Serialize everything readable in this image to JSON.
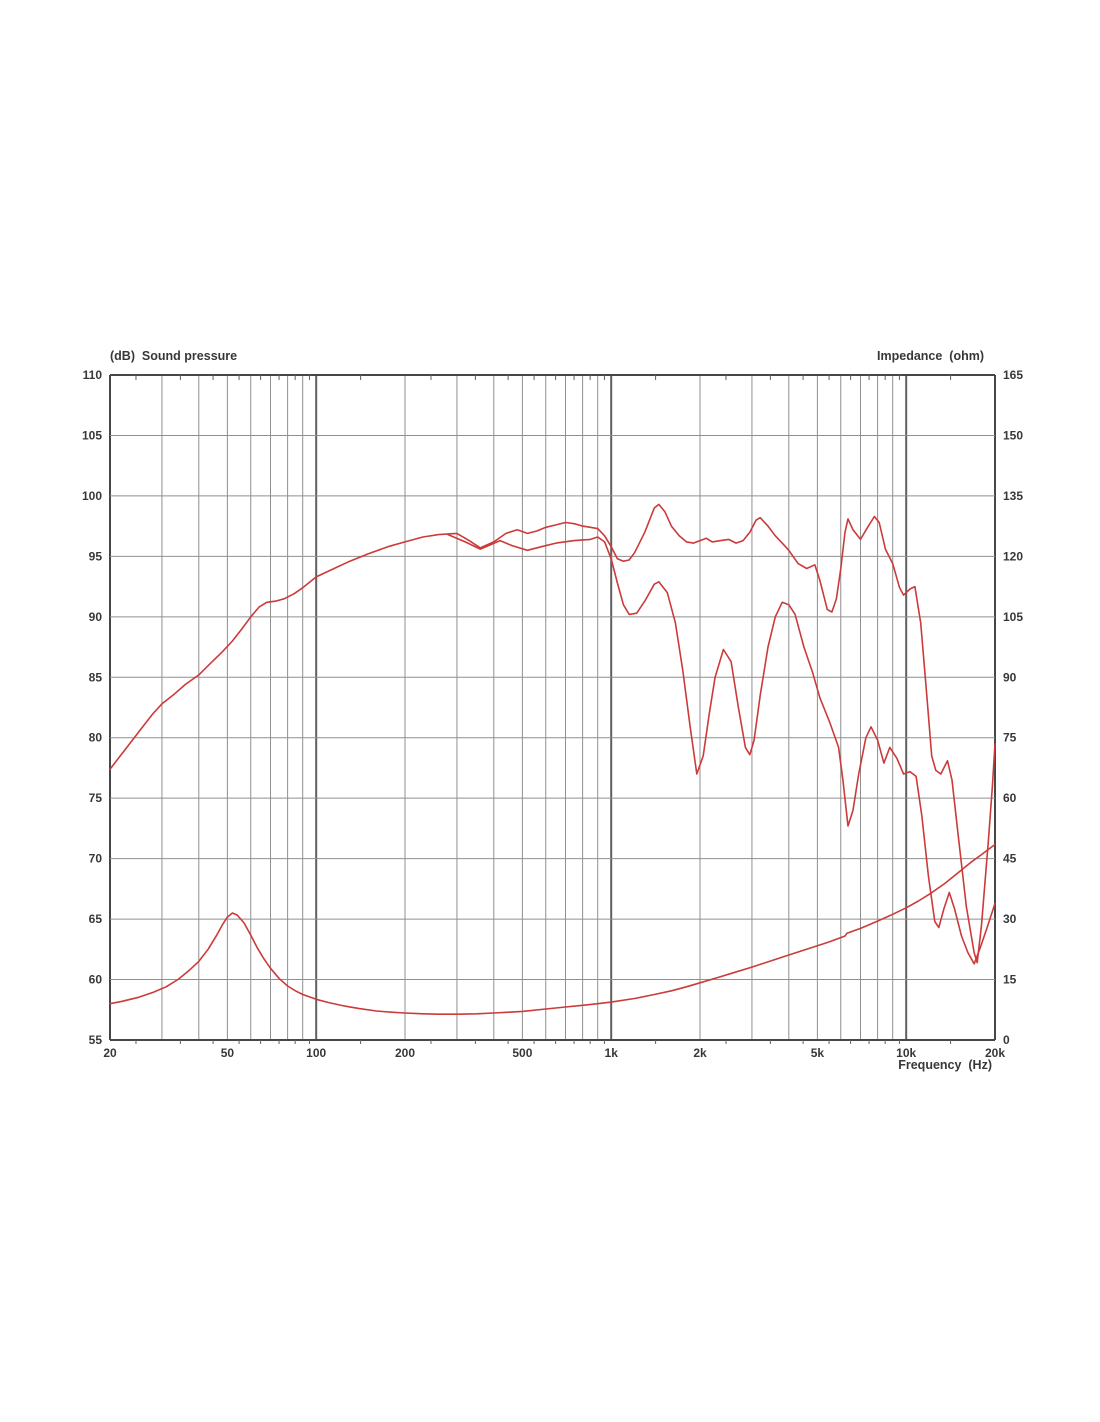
{
  "page": {
    "background": "#ffffff"
  },
  "chart_data": {
    "type": "line",
    "title_left": "(dB)  Sound pressure",
    "title_right": "Impedance  (ohm)",
    "xlabel": "Frequency  (Hz)",
    "x_axis": {
      "scale": "log",
      "min": 20,
      "max": 20000,
      "tick_labels": [
        {
          "t": "20",
          "f": 20
        },
        {
          "t": "50",
          "f": 50
        },
        {
          "t": "100",
          "f": 100
        },
        {
          "t": "200",
          "f": 200
        },
        {
          "t": "500",
          "f": 500
        },
        {
          "t": "1k",
          "f": 1000
        },
        {
          "t": "2k",
          "f": 2000
        },
        {
          "t": "5k",
          "f": 5000
        },
        {
          "t": "10k",
          "f": 10000
        },
        {
          "t": "20k",
          "f": 20000
        }
      ]
    },
    "y_left": {
      "label": "dB",
      "min": 55,
      "max": 110,
      "step": 5
    },
    "y_right": {
      "label": "ohm",
      "min": 0,
      "max": 165,
      "step": 15
    },
    "grid": {
      "on": true,
      "minor_color": "#8f8f8f",
      "decade_color": "#5f5f5f",
      "border_color": "#474747",
      "tick_color": "#5f5f5f"
    },
    "legend": "none",
    "series": [
      {
        "name": "sound-pressure-upper",
        "axis": "left",
        "color": "#cc3a3a",
        "points": [
          [
            20,
            77.4
          ],
          [
            22,
            78.7
          ],
          [
            24,
            79.9
          ],
          [
            26,
            81.0
          ],
          [
            28,
            82.0
          ],
          [
            30,
            82.8
          ],
          [
            33,
            83.6
          ],
          [
            36,
            84.4
          ],
          [
            40,
            85.2
          ],
          [
            44,
            86.2
          ],
          [
            48,
            87.1
          ],
          [
            52,
            88.0
          ],
          [
            56,
            89.0
          ],
          [
            60,
            90.0
          ],
          [
            64,
            90.8
          ],
          [
            68,
            91.2
          ],
          [
            73,
            91.3
          ],
          [
            78,
            91.5
          ],
          [
            84,
            91.9
          ],
          [
            90,
            92.4
          ],
          [
            100,
            93.3
          ],
          [
            115,
            94.0
          ],
          [
            130,
            94.6
          ],
          [
            150,
            95.2
          ],
          [
            175,
            95.8
          ],
          [
            200,
            96.2
          ],
          [
            230,
            96.6
          ],
          [
            260,
            96.8
          ],
          [
            300,
            96.9
          ],
          [
            330,
            96.3
          ],
          [
            360,
            95.7
          ],
          [
            400,
            96.2
          ],
          [
            440,
            96.9
          ],
          [
            480,
            97.2
          ],
          [
            520,
            96.9
          ],
          [
            560,
            97.1
          ],
          [
            600,
            97.4
          ],
          [
            650,
            97.6
          ],
          [
            700,
            97.8
          ],
          [
            750,
            97.7
          ],
          [
            800,
            97.5
          ],
          [
            850,
            97.4
          ],
          [
            900,
            97.3
          ],
          [
            950,
            96.7
          ],
          [
            1000,
            95.8
          ],
          [
            1050,
            94.8
          ],
          [
            1100,
            94.6
          ],
          [
            1150,
            94.7
          ],
          [
            1200,
            95.3
          ],
          [
            1300,
            97.0
          ],
          [
            1400,
            99.0
          ],
          [
            1450,
            99.3
          ],
          [
            1520,
            98.7
          ],
          [
            1600,
            97.5
          ],
          [
            1700,
            96.7
          ],
          [
            1800,
            96.2
          ],
          [
            1900,
            96.1
          ],
          [
            2000,
            96.3
          ],
          [
            2100,
            96.5
          ],
          [
            2200,
            96.2
          ],
          [
            2350,
            96.3
          ],
          [
            2500,
            96.4
          ],
          [
            2650,
            96.1
          ],
          [
            2800,
            96.3
          ],
          [
            2950,
            97.0
          ],
          [
            3100,
            98.0
          ],
          [
            3200,
            98.2
          ],
          [
            3400,
            97.5
          ],
          [
            3600,
            96.7
          ],
          [
            3800,
            96.1
          ],
          [
            4000,
            95.5
          ],
          [
            4300,
            94.4
          ],
          [
            4600,
            94.0
          ],
          [
            4900,
            94.3
          ],
          [
            5100,
            93.0
          ],
          [
            5400,
            90.6
          ],
          [
            5600,
            90.4
          ],
          [
            5800,
            91.5
          ],
          [
            6000,
            94.0
          ],
          [
            6200,
            97.0
          ],
          [
            6350,
            98.1
          ],
          [
            6600,
            97.2
          ],
          [
            7000,
            96.4
          ],
          [
            7400,
            97.4
          ],
          [
            7800,
            98.3
          ],
          [
            8100,
            97.8
          ],
          [
            8500,
            95.6
          ],
          [
            9000,
            94.4
          ],
          [
            9500,
            92.4
          ],
          [
            9800,
            91.8
          ],
          [
            10300,
            92.3
          ],
          [
            10700,
            92.5
          ],
          [
            11200,
            89.5
          ],
          [
            11700,
            84.0
          ],
          [
            12200,
            78.5
          ],
          [
            12600,
            77.3
          ],
          [
            13100,
            77.0
          ],
          [
            13800,
            78.1
          ],
          [
            14300,
            76.5
          ],
          [
            15000,
            72.0
          ],
          [
            16000,
            66.0
          ],
          [
            17000,
            62.2
          ],
          [
            17400,
            61.4
          ],
          [
            18000,
            64.5
          ],
          [
            19000,
            71.5
          ],
          [
            19600,
            76.0
          ],
          [
            20000,
            79.5
          ]
        ]
      },
      {
        "name": "sound-pressure-lower",
        "axis": "left",
        "color": "#cc3a3a",
        "points": [
          [
            280,
            96.8
          ],
          [
            320,
            96.2
          ],
          [
            360,
            95.6
          ],
          [
            420,
            96.3
          ],
          [
            460,
            95.9
          ],
          [
            520,
            95.5
          ],
          [
            580,
            95.8
          ],
          [
            650,
            96.1
          ],
          [
            750,
            96.3
          ],
          [
            850,
            96.4
          ],
          [
            900,
            96.6
          ],
          [
            950,
            96.2
          ],
          [
            1000,
            94.8
          ],
          [
            1050,
            92.8
          ],
          [
            1100,
            91.0
          ],
          [
            1150,
            90.2
          ],
          [
            1220,
            90.3
          ],
          [
            1300,
            91.3
          ],
          [
            1400,
            92.7
          ],
          [
            1450,
            92.9
          ],
          [
            1550,
            92.0
          ],
          [
            1650,
            89.5
          ],
          [
            1750,
            85.5
          ],
          [
            1850,
            81.0
          ],
          [
            1950,
            77.0
          ],
          [
            2050,
            78.5
          ],
          [
            2150,
            82.0
          ],
          [
            2250,
            85.0
          ],
          [
            2400,
            87.3
          ],
          [
            2550,
            86.3
          ],
          [
            2700,
            82.5
          ],
          [
            2850,
            79.2
          ],
          [
            2950,
            78.6
          ],
          [
            3050,
            79.8
          ],
          [
            3200,
            83.5
          ],
          [
            3400,
            87.5
          ],
          [
            3600,
            90.0
          ],
          [
            3800,
            91.2
          ],
          [
            4000,
            91.0
          ],
          [
            4200,
            90.2
          ],
          [
            4500,
            87.5
          ],
          [
            4800,
            85.5
          ],
          [
            5100,
            83.3
          ],
          [
            5500,
            81.3
          ],
          [
            5900,
            79.2
          ],
          [
            6100,
            76.5
          ],
          [
            6350,
            72.7
          ],
          [
            6600,
            74.0
          ],
          [
            6900,
            77.0
          ],
          [
            7300,
            80.0
          ],
          [
            7600,
            80.9
          ],
          [
            8000,
            79.8
          ],
          [
            8400,
            77.9
          ],
          [
            8800,
            79.2
          ],
          [
            9300,
            78.3
          ],
          [
            9800,
            77.0
          ],
          [
            10300,
            77.2
          ],
          [
            10800,
            76.8
          ],
          [
            11300,
            73.5
          ],
          [
            11900,
            68.5
          ],
          [
            12500,
            64.8
          ],
          [
            12900,
            64.3
          ],
          [
            13400,
            65.8
          ],
          [
            14000,
            67.2
          ],
          [
            14600,
            65.8
          ],
          [
            15400,
            63.6
          ],
          [
            16200,
            62.2
          ],
          [
            17000,
            61.3
          ],
          [
            17800,
            62.6
          ],
          [
            18800,
            64.3
          ],
          [
            20000,
            66.3
          ]
        ]
      },
      {
        "name": "impedance",
        "axis": "right",
        "color": "#cc3a3a",
        "points": [
          [
            20,
            9.0
          ],
          [
            22,
            9.6
          ],
          [
            25,
            10.6
          ],
          [
            28,
            11.8
          ],
          [
            31,
            13.2
          ],
          [
            34,
            15.0
          ],
          [
            37,
            17.2
          ],
          [
            40,
            19.5
          ],
          [
            43,
            22.5
          ],
          [
            46,
            26.0
          ],
          [
            48,
            28.5
          ],
          [
            50,
            30.5
          ],
          [
            52,
            31.5
          ],
          [
            54,
            31.0
          ],
          [
            57,
            29.0
          ],
          [
            60,
            26.0
          ],
          [
            63,
            23.0
          ],
          [
            66,
            20.5
          ],
          [
            70,
            17.8
          ],
          [
            75,
            15.2
          ],
          [
            80,
            13.4
          ],
          [
            85,
            12.2
          ],
          [
            90,
            11.3
          ],
          [
            100,
            10.1
          ],
          [
            110,
            9.3
          ],
          [
            125,
            8.4
          ],
          [
            140,
            7.8
          ],
          [
            160,
            7.2
          ],
          [
            180,
            6.9
          ],
          [
            200,
            6.7
          ],
          [
            230,
            6.5
          ],
          [
            260,
            6.4
          ],
          [
            300,
            6.4
          ],
          [
            350,
            6.5
          ],
          [
            400,
            6.7
          ],
          [
            450,
            6.9
          ],
          [
            500,
            7.1
          ],
          [
            600,
            7.7
          ],
          [
            700,
            8.2
          ],
          [
            800,
            8.6
          ],
          [
            900,
            9.0
          ],
          [
            1000,
            9.4
          ],
          [
            1200,
            10.3
          ],
          [
            1400,
            11.3
          ],
          [
            1600,
            12.2
          ],
          [
            1800,
            13.2
          ],
          [
            2000,
            14.2
          ],
          [
            2300,
            15.5
          ],
          [
            2600,
            16.7
          ],
          [
            3000,
            18.1
          ],
          [
            3500,
            19.7
          ],
          [
            4000,
            21.1
          ],
          [
            4500,
            22.3
          ],
          [
            5000,
            23.4
          ],
          [
            5500,
            24.4
          ],
          [
            6000,
            25.4
          ],
          [
            6200,
            25.8
          ],
          [
            6300,
            26.5
          ],
          [
            7000,
            27.7
          ],
          [
            8000,
            29.5
          ],
          [
            9000,
            31.2
          ],
          [
            10000,
            32.8
          ],
          [
            11000,
            34.5
          ],
          [
            12000,
            36.2
          ],
          [
            13500,
            38.8
          ],
          [
            15000,
            41.5
          ],
          [
            16500,
            44.0
          ],
          [
            18000,
            46.0
          ],
          [
            19000,
            47.3
          ],
          [
            20000,
            48.5
          ]
        ]
      }
    ]
  }
}
